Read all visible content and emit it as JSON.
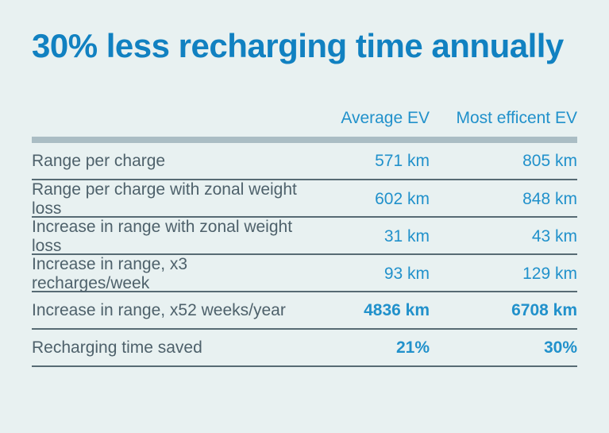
{
  "title": "30% less recharging time annually",
  "table": {
    "columns": [
      "Average EV",
      "Most efficent EV"
    ],
    "rows": [
      {
        "label": "Range per charge",
        "values": [
          "571 km",
          "805 km"
        ],
        "bold": false
      },
      {
        "label": "Range per charge with zonal weight loss",
        "values": [
          "602 km",
          "848 km"
        ],
        "bold": false
      },
      {
        "label": "Increase in range with zonal weight loss",
        "values": [
          "31 km",
          "43 km"
        ],
        "bold": false
      },
      {
        "label": "Increase in range, x3 recharges/week",
        "values": [
          "93 km",
          "129 km"
        ],
        "bold": false
      },
      {
        "label": "Increase in range, x52 weeks/year",
        "values": [
          "4836 km",
          "6708 km"
        ],
        "bold": true
      },
      {
        "label": "Recharging time saved",
        "values": [
          "21%",
          "30%"
        ],
        "bold": true
      }
    ]
  },
  "colors": {
    "background": "#e8f1f1",
    "title_blue": "#1181c1",
    "value_blue": "#2191cb",
    "label_slate": "#4e616b",
    "divider": "#576b74",
    "header_bar": "#aabdc4"
  },
  "chart_data": {
    "type": "table",
    "title": "30% less recharging time annually",
    "columns": [
      "",
      "Average EV",
      "Most efficent EV"
    ],
    "rows": [
      [
        "Range per charge",
        "571 km",
        "805 km"
      ],
      [
        "Range per charge with zonal weight loss",
        "602 km",
        "848 km"
      ],
      [
        "Increase in range with zonal weight loss",
        "31 km",
        "43 km"
      ],
      [
        "Increase in range, x3 recharges/week",
        "93 km",
        "129 km"
      ],
      [
        "Increase in range, x52 weeks/year",
        "4836 km",
        "6708 km"
      ],
      [
        "Recharging time saved",
        "21%",
        "30%"
      ]
    ],
    "notes": "Last two rows rendered bold; numeric columns right-aligned; values in blue, labels in slate gray"
  }
}
